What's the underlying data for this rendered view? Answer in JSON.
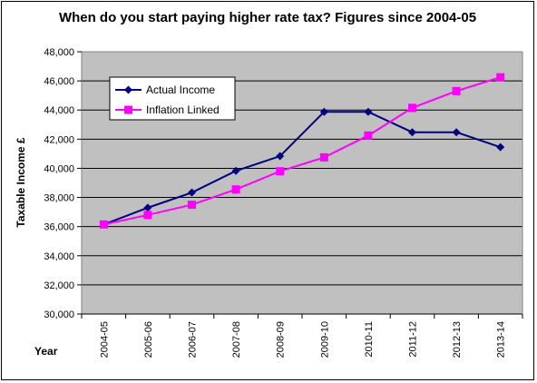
{
  "chart_data": {
    "type": "line",
    "title": "When do you start paying higher rate tax? Figures since 2004-05",
    "xlabel": "Year",
    "ylabel": "Taxable Income £",
    "categories": [
      "2004-05",
      "2005-06",
      "2006-07",
      "2007-08",
      "2008-09",
      "2009-10",
      "2010-11",
      "2011-12",
      "2012-13",
      "2013-14"
    ],
    "ylim": [
      30000,
      48000
    ],
    "yticks": [
      30000,
      32000,
      34000,
      36000,
      38000,
      40000,
      42000,
      44000,
      46000,
      48000
    ],
    "ytick_labels": [
      "30,000",
      "32,000",
      "34,000",
      "36,000",
      "38,000",
      "40,000",
      "42,000",
      "44,000",
      "46,000",
      "48,000"
    ],
    "grid": "horizontal",
    "legend_position": "top-left",
    "plot_background": "#c0c0c0",
    "series": [
      {
        "name": "Actual Income",
        "color": "#000080",
        "marker": "diamond",
        "values": [
          36145,
          37295,
          38335,
          39825,
          40835,
          43875,
          43875,
          42475,
          42475,
          41450
        ]
      },
      {
        "name": "Inflation Linked",
        "color": "#ff00ff",
        "marker": "square",
        "values": [
          36145,
          36800,
          37500,
          38550,
          39800,
          40750,
          42250,
          44150,
          45300,
          46250
        ]
      }
    ]
  }
}
